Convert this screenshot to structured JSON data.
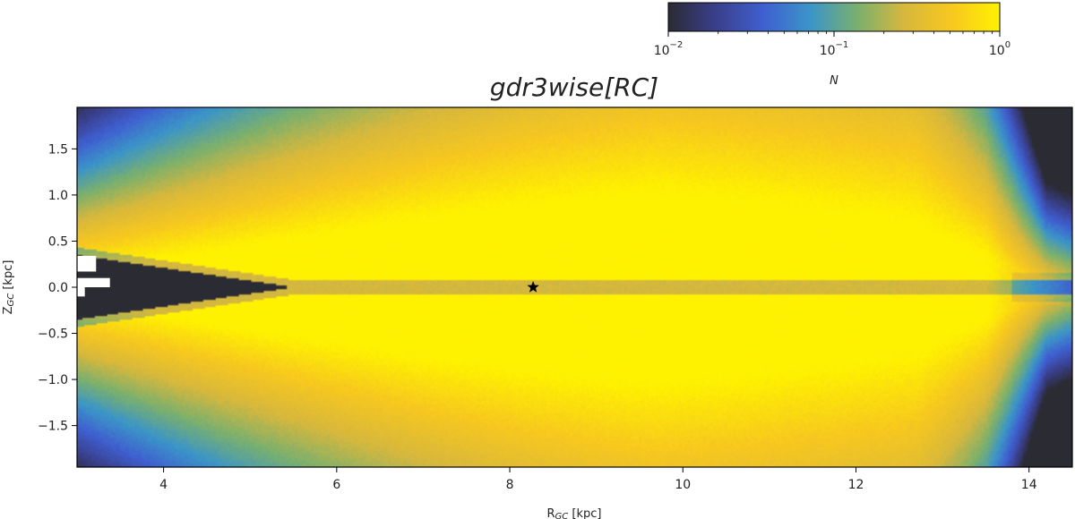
{
  "chart_data": {
    "type": "heatmap",
    "title": "gdr3wise[RC]",
    "xlabel": {
      "main": "R",
      "sub": "GC",
      "unit": " [kpc]"
    },
    "ylabel": {
      "main": "Z",
      "sub": "GC",
      "unit": " [kpc]"
    },
    "xlim": [
      3.0,
      14.5
    ],
    "ylim": [
      -1.95,
      1.95
    ],
    "xticks": [
      4,
      6,
      8,
      10,
      12,
      14
    ],
    "yticks": [
      -1.5,
      -1.0,
      -0.5,
      0.0,
      0.5,
      1.0,
      1.5
    ],
    "xtick_labels": [
      "4",
      "6",
      "8",
      "10",
      "12",
      "14"
    ],
    "ytick_labels": [
      "−1.5",
      "−1.0",
      "−0.5",
      "0.0",
      "0.5",
      "1.0",
      "1.5"
    ],
    "colorbar": {
      "label": "N",
      "scale": "log",
      "range": [
        0.01,
        1.0
      ],
      "ticks": [
        {
          "base": "10",
          "exp": "−2"
        },
        {
          "base": "10",
          "exp": "−1"
        },
        {
          "base": "10",
          "exp": "0"
        }
      ],
      "colormap": [
        "#2b2b33",
        "#3a3f8a",
        "#3f5fd0",
        "#3b95c8",
        "#7ab06e",
        "#d8b83c",
        "#f7c81f",
        "#fff200"
      ]
    },
    "density_model": {
      "description": "normalized star-count density N vs (R_GC, Z_GC); brightest near the disk plane between R=6 and 13 kpc",
      "peak_N": 1.0,
      "empty_region_N": 0.0
    },
    "annotations": [
      {
        "type": "star-marker",
        "label": "Sun",
        "x": 8.27,
        "y": 0.0
      }
    ]
  }
}
